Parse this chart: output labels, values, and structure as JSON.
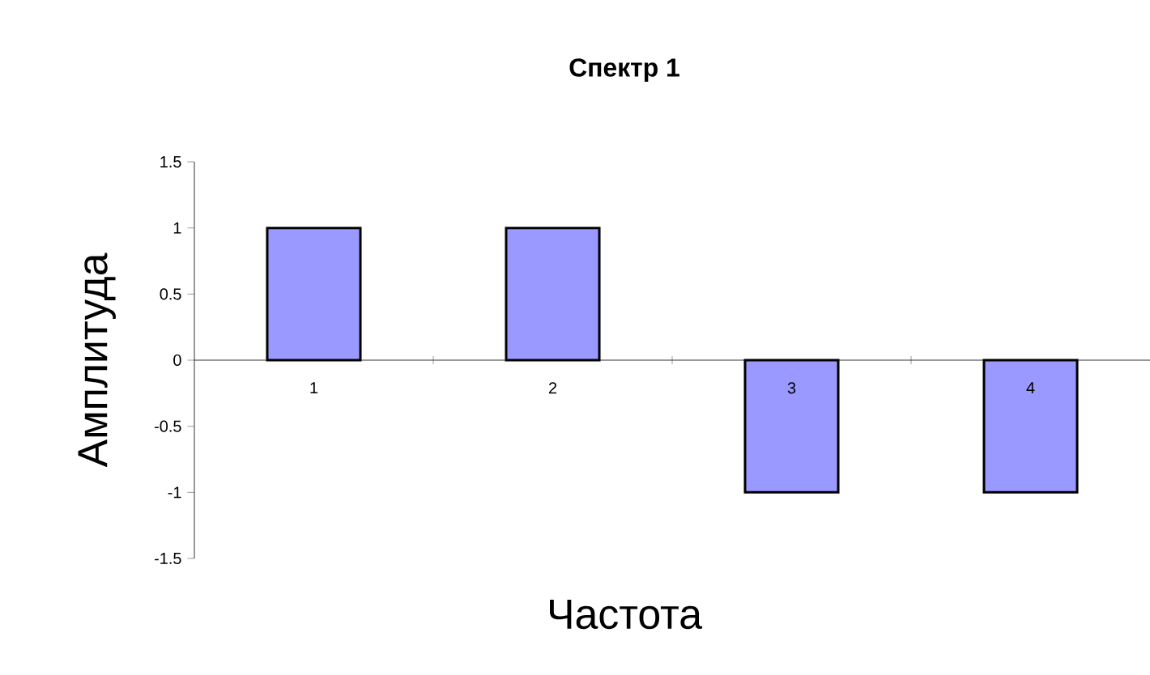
{
  "chart_data": {
    "type": "bar",
    "title": "Спектр 1",
    "xlabel": "Частота",
    "ylabel": "Амплитуда",
    "categories": [
      "1",
      "2",
      "3",
      "4"
    ],
    "values": [
      1,
      1,
      -1,
      -1
    ],
    "color": "#9999ff",
    "ylim": [
      -1.5,
      1.5
    ],
    "yticks": [
      -1.5,
      -1,
      -0.5,
      0,
      0.5,
      1,
      1.5
    ]
  }
}
